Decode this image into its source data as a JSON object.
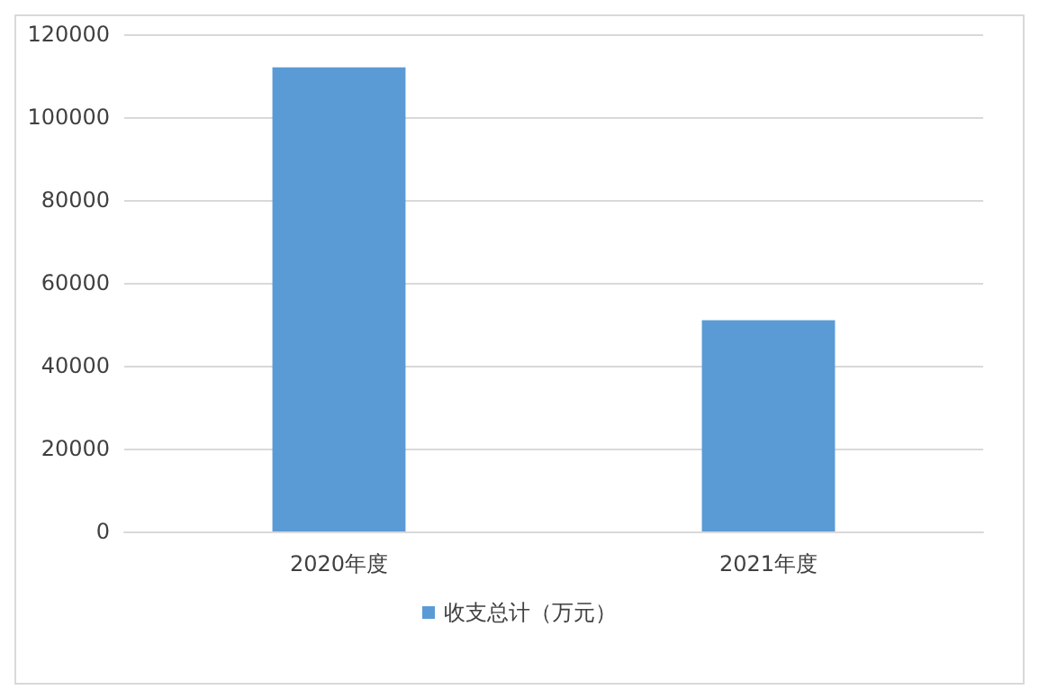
{
  "chart_data": {
    "type": "bar",
    "categories": [
      "2020年度",
      "2021年度"
    ],
    "series": [
      {
        "name": "收支总计（万元）",
        "color": "#5b9bd5",
        "values": [
          112000,
          51000
        ]
      }
    ],
    "ylim": [
      0,
      120000
    ],
    "yticks": [
      0,
      20000,
      40000,
      60000,
      80000,
      100000,
      120000
    ],
    "grid": "y",
    "legend": "bottom"
  }
}
